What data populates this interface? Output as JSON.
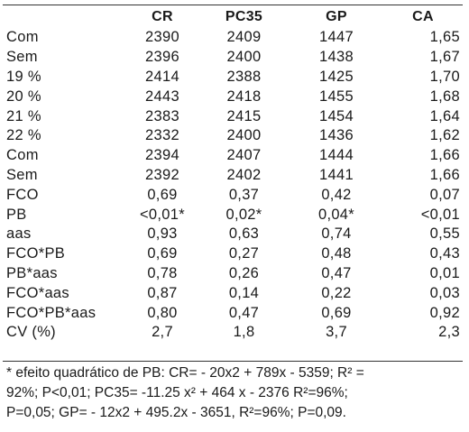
{
  "table": {
    "headers": [
      "",
      "CR",
      "PC35",
      "GP",
      "CA"
    ],
    "rows": [
      {
        "label": "Com",
        "cr": "2390",
        "pc35": "2409",
        "gp": "1447",
        "ca": "1,65"
      },
      {
        "label": "Sem",
        "cr": "2396",
        "pc35": "2400",
        "gp": "1438",
        "ca": "1,67"
      },
      {
        "label": "19 %",
        "cr": "2414",
        "pc35": "2388",
        "gp": "1425",
        "ca": "1,70"
      },
      {
        "label": "20 %",
        "cr": "2443",
        "pc35": "2418",
        "gp": "1455",
        "ca": "1,68"
      },
      {
        "label": "21 %",
        "cr": "2383",
        "pc35": "2415",
        "gp": "1454",
        "ca": "1,64"
      },
      {
        "label": "22 %",
        "cr": "2332",
        "pc35": "2400",
        "gp": "1436",
        "ca": "1,62"
      },
      {
        "label": "Com",
        "cr": "2394",
        "pc35": "2407",
        "gp": "1444",
        "ca": "1,66"
      },
      {
        "label": "Sem",
        "cr": "2392",
        "pc35": "2402",
        "gp": "1441",
        "ca": "1,66"
      },
      {
        "label": "FCO",
        "cr": "0,69",
        "pc35": "0,37",
        "gp": "0,42",
        "ca": "0,07"
      },
      {
        "label": "PB",
        "cr": "<0,01*",
        "pc35": "0,02*",
        "gp": "0,04*",
        "ca": "<0,01"
      },
      {
        "label": "aas",
        "cr": "0,93",
        "pc35": "0,63",
        "gp": "0,74",
        "ca": "0,55"
      },
      {
        "label": "FCO*PB",
        "cr": "0,69",
        "pc35": "0,27",
        "gp": "0,48",
        "ca": "0,43"
      },
      {
        "label": "PB*aas",
        "cr": "0,78",
        "pc35": "0,26",
        "gp": "0,47",
        "ca": "0,01"
      },
      {
        "label": "FCO*aas",
        "cr": "0,87",
        "pc35": "0,14",
        "gp": "0,22",
        "ca": "0,03"
      },
      {
        "label": "FCO*PB*aas",
        "cr": "0,80",
        "pc35": "0,47",
        "gp": "0,69",
        "ca": "0,92"
      },
      {
        "label": "CV (%)",
        "cr": "2,7",
        "pc35": "1,8",
        "gp": "3,7",
        "ca": "2,3"
      }
    ]
  },
  "footnote": {
    "lines": [
      "* efeito quadrático de PB: CR= - 20x2 + 789x - 5359; R² =",
      "92%; P<0,01; PC35= -11.25 x² + 464 x - 2376 R²=96%;",
      "P=0,05; GP= - 12x2 + 495.2x - 3651, R²=96%; P=0,09."
    ]
  }
}
